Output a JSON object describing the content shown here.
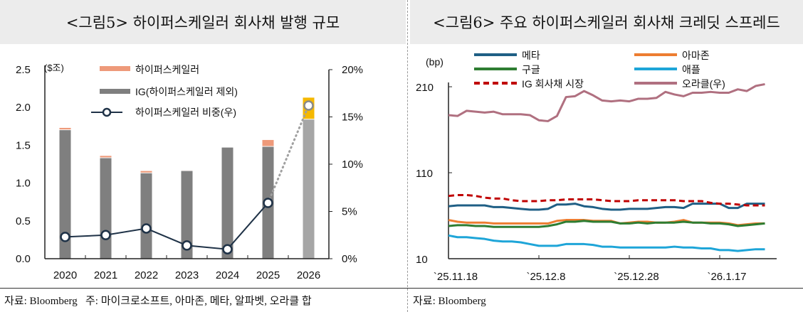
{
  "titles": {
    "left": "<그림5> 하이퍼스케일러 회사채 발행 규모",
    "right": "<그림6> 주요 하이퍼스케일러 회사채 크레딧 스프레드"
  },
  "footnotes": {
    "left": "자료: Bloomberg   주: 마이크로소프트, 아마존, 메타, 알파벳, 오라클 합",
    "right": "자료: Bloomberg"
  },
  "chart_data": [
    {
      "type": "bar",
      "stacked": true,
      "unit_left": "($조)",
      "categories": [
        "2020",
        "2021",
        "2022",
        "2023",
        "2024",
        "2025",
        "2026"
      ],
      "ylim": [
        0,
        2.5
      ],
      "yticks": [
        "0.0",
        "0.5",
        "1.0",
        "1.5",
        "2.0",
        "2.5"
      ],
      "y2lim": [
        0,
        20
      ],
      "y2ticks": [
        "0%",
        "5%",
        "10%",
        "15%",
        "20%"
      ],
      "series": [
        {
          "name": "IG(하이퍼스케일러 제외)",
          "color": "#7f7f7f",
          "values": [
            1.7,
            1.33,
            1.13,
            1.16,
            1.47,
            1.48,
            1.84
          ]
        },
        {
          "name": "하이퍼스케일러",
          "color": "#ee9a7a",
          "values": [
            0.03,
            0.03,
            0.03,
            0.01,
            0.0,
            0.09,
            0.29
          ]
        },
        {
          "name": "하이퍼스케일러 비중(우)",
          "type": "line",
          "axis": "right",
          "color": "#1f3247",
          "values": [
            2.3,
            2.5,
            3.2,
            1.4,
            1.0,
            5.9,
            16.2
          ]
        }
      ],
      "projection": {
        "category": "2026",
        "ig_color": "#a6a6a6",
        "hyperscaler_color": "#f5b800",
        "line_style": "dotted",
        "line_color": "#a0a0a0"
      },
      "legend": "top"
    },
    {
      "type": "line",
      "unit_left": "(bp)",
      "ylim": [
        10,
        215
      ],
      "yticks": [
        "10",
        "110",
        "210"
      ],
      "xticks": [
        "`25.11.18",
        "`25.12.8",
        "`25.12.28",
        "`26.1.17"
      ],
      "x_days_from_first": [
        0,
        2,
        4,
        6,
        8,
        10,
        12,
        14,
        16,
        18,
        20,
        22,
        24,
        26,
        28,
        30,
        32,
        34,
        36,
        38,
        40,
        42,
        44,
        46,
        48,
        50,
        52,
        54,
        56,
        58,
        60,
        62,
        64,
        66,
        68,
        70
      ],
      "series": [
        {
          "name": "메타",
          "color": "#1f5f85",
          "values": [
            71,
            72,
            72,
            72,
            72,
            70,
            70,
            69,
            68,
            67,
            67,
            68,
            73,
            73,
            74,
            71,
            70,
            68,
            67,
            67,
            68,
            68,
            68,
            69,
            70,
            70,
            69,
            74,
            74,
            74,
            74,
            69,
            69,
            74,
            74,
            74
          ]
        },
        {
          "name": "아마존",
          "color": "#ed7d31",
          "values": [
            55,
            53,
            52,
            52,
            52,
            51,
            51,
            51,
            51,
            51,
            51,
            51,
            54,
            55,
            55,
            55,
            54,
            54,
            54,
            51,
            52,
            53,
            53,
            52,
            52,
            53,
            55,
            52,
            52,
            52,
            52,
            51,
            49,
            50,
            51,
            51
          ]
        },
        {
          "name": "구글",
          "color": "#2e7d32",
          "values": [
            48,
            49,
            49,
            48,
            48,
            47,
            47,
            47,
            47,
            47,
            47,
            48,
            50,
            53,
            53,
            54,
            53,
            53,
            53,
            51,
            51,
            52,
            51,
            52,
            52,
            52,
            53,
            52,
            52,
            51,
            51,
            50,
            48,
            49,
            50,
            51
          ]
        },
        {
          "name": "애플",
          "color": "#1ea5d8",
          "values": [
            37,
            35,
            35,
            34,
            33,
            31,
            30,
            30,
            29,
            27,
            25,
            25,
            25,
            27,
            27,
            27,
            26,
            24,
            24,
            23,
            23,
            23,
            23,
            23,
            23,
            24,
            23,
            23,
            22,
            22,
            20,
            20,
            19,
            20,
            21,
            21
          ]
        },
        {
          "name": "IG 회사채 시장",
          "color": "#c00000",
          "dashed": true,
          "values": [
            83,
            84,
            84,
            83,
            81,
            80,
            80,
            78,
            77,
            77,
            77,
            78,
            78,
            79,
            79,
            79,
            79,
            78,
            77,
            77,
            77,
            78,
            78,
            78,
            78,
            78,
            77,
            77,
            77,
            75,
            74,
            74,
            73,
            72,
            72,
            72
          ]
        },
        {
          "name": "오라클(우)",
          "color": "#b07080",
          "values": [
            177,
            176,
            182,
            181,
            180,
            181,
            178,
            178,
            178,
            177,
            171,
            170,
            176,
            198,
            199,
            205,
            200,
            194,
            193,
            194,
            193,
            196,
            196,
            197,
            204,
            201,
            199,
            203,
            203,
            204,
            203,
            203,
            207,
            205,
            211,
            213
          ]
        }
      ],
      "legend": "top"
    }
  ]
}
